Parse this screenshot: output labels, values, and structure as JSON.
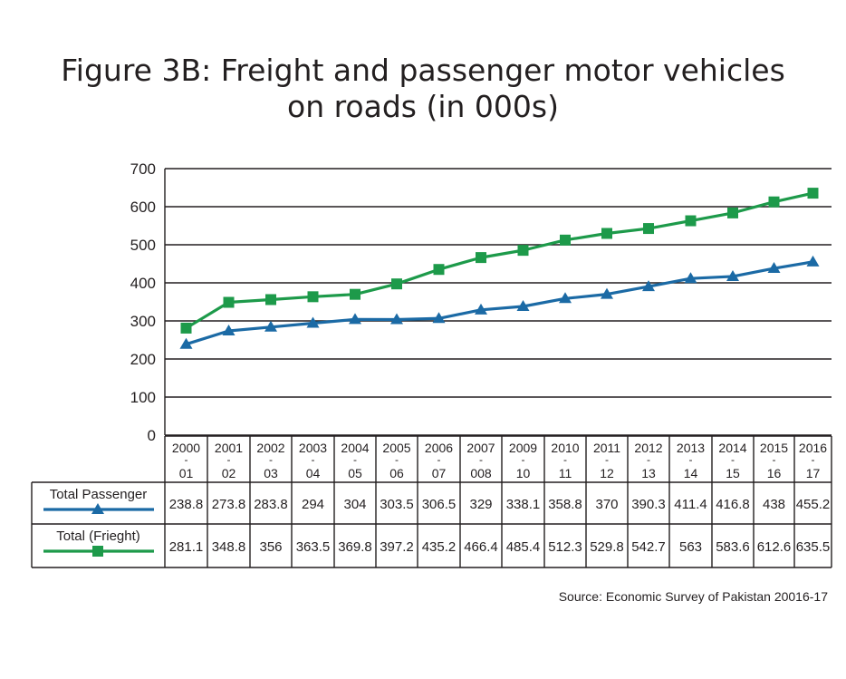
{
  "title_line1": "Figure 3B: Freight and passenger motor vehicles",
  "title_line2": "on roads (in 000s)",
  "source": "Source: Economic Survey of Pakistan 20016-17",
  "colors": {
    "passenger": "#1b6aa5",
    "freight": "#1d9a4a",
    "grid": "#231f20"
  },
  "chart_data": {
    "type": "line",
    "categories": [
      [
        "2000",
        "-",
        "01"
      ],
      [
        "2001",
        "-",
        "02"
      ],
      [
        "2002",
        "-",
        "03"
      ],
      [
        "2003",
        "-",
        "04"
      ],
      [
        "2004",
        "-",
        "05"
      ],
      [
        "2005",
        "-",
        "06"
      ],
      [
        "2006",
        "-",
        "07"
      ],
      [
        "2007",
        "-",
        "008"
      ],
      [
        "2009",
        "-",
        "10"
      ],
      [
        "2010",
        "-",
        "11"
      ],
      [
        "2011",
        "-",
        "12"
      ],
      [
        "2012",
        "-",
        "13"
      ],
      [
        "2013",
        "-",
        "14"
      ],
      [
        "2014",
        "-",
        "15"
      ],
      [
        "2015",
        "-",
        "16"
      ],
      [
        "2016",
        "-",
        "17"
      ]
    ],
    "yticks": [
      "0",
      "100",
      "200",
      "300",
      "400",
      "500",
      "600",
      "700"
    ],
    "ylim": [
      0,
      700
    ],
    "grid": true,
    "legend": "table-below",
    "series": [
      {
        "name": "Total Passenger",
        "marker": "triangle",
        "values": [
          238.8,
          273.8,
          283.8,
          294,
          304,
          303.5,
          306.5,
          329,
          338.1,
          358.8,
          370,
          390.3,
          411.4,
          416.8,
          438,
          455.2
        ],
        "labels": [
          "238.8",
          "273.8",
          "283.8",
          "294",
          "304",
          "303.5",
          "306.5",
          "329",
          "338.1",
          "358.8",
          "370",
          "390.3",
          "411.4",
          "416.8",
          "438",
          "455.2"
        ]
      },
      {
        "name": "Total (Frieght)",
        "marker": "square",
        "values": [
          281.1,
          348.8,
          356,
          363.5,
          369.8,
          397.2,
          435.2,
          466.4,
          485.4,
          512.3,
          529.8,
          542.7,
          563,
          583.6,
          612.6,
          635.5
        ],
        "labels": [
          "281.1",
          "348.8",
          "356",
          "363.5",
          "369.8",
          "397.2",
          "435.2",
          "466.4",
          "485.4",
          "512.3",
          "529.8",
          "542.7",
          "563",
          "583.6",
          "612.6",
          "635.5"
        ]
      }
    ]
  }
}
